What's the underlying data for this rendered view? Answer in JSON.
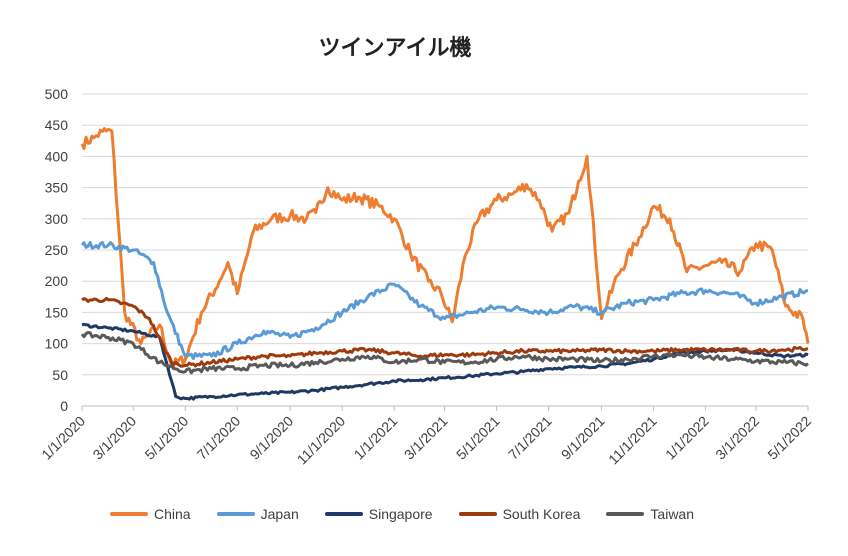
{
  "chart_data": {
    "type": "line",
    "title": "ツインアイル機",
    "xlabel": "",
    "ylabel": "",
    "ylim": [
      0,
      500
    ],
    "yticks": [
      0,
      50,
      100,
      150,
      200,
      250,
      300,
      350,
      400,
      450,
      500
    ],
    "xticks": [
      "1/1/2020",
      "3/1/2020",
      "5/1/2020",
      "7/1/2020",
      "9/1/2020",
      "11/1/2020",
      "1/1/2021",
      "3/1/2021",
      "5/1/2021",
      "7/1/2021",
      "9/1/2021",
      "11/1/2021",
      "1/1/2022",
      "3/1/2022",
      "5/1/2022"
    ],
    "grid": "horizontal",
    "legend_position": "bottom",
    "series": [
      {
        "name": "China",
        "color": "#ED7D31",
        "x": [
          "2020-01-01",
          "2020-01-15",
          "2020-01-25",
          "2020-02-05",
          "2020-02-20",
          "2020-03-10",
          "2020-04-01",
          "2020-04-15",
          "2020-05-01",
          "2020-05-20",
          "2020-06-10",
          "2020-06-20",
          "2020-07-01",
          "2020-07-20",
          "2020-08-10",
          "2020-09-01",
          "2020-09-20",
          "2020-10-01",
          "2020-10-15",
          "2020-11-01",
          "2020-11-20",
          "2020-12-15",
          "2021-01-01",
          "2021-01-20",
          "2021-02-10",
          "2021-02-25",
          "2021-03-10",
          "2021-03-25",
          "2021-04-10",
          "2021-05-01",
          "2021-05-20",
          "2021-06-05",
          "2021-06-20",
          "2021-07-05",
          "2021-07-25",
          "2021-08-05",
          "2021-08-15",
          "2021-09-01",
          "2021-09-20",
          "2021-10-15",
          "2021-11-01",
          "2021-11-20",
          "2021-12-10",
          "2022-01-01",
          "2022-01-20",
          "2022-02-10",
          "2022-03-01",
          "2022-03-20",
          "2022-04-05",
          "2022-04-25",
          "2022-05-01"
        ],
        "values": [
          420,
          430,
          440,
          440,
          150,
          100,
          130,
          65,
          75,
          150,
          200,
          230,
          180,
          280,
          300,
          305,
          300,
          310,
          350,
          330,
          335,
          320,
          300,
          245,
          200,
          180,
          135,
          240,
          300,
          330,
          340,
          355,
          330,
          280,
          310,
          360,
          400,
          140,
          210,
          270,
          320,
          300,
          215,
          225,
          230,
          215,
          260,
          250,
          160,
          140,
          100
        ]
      },
      {
        "name": "Japan",
        "color": "#5B9BD5",
        "x": [
          "2020-01-01",
          "2020-02-01",
          "2020-03-01",
          "2020-03-25",
          "2020-04-10",
          "2020-05-01",
          "2020-06-01",
          "2020-07-01",
          "2020-08-01",
          "2020-09-01",
          "2020-10-01",
          "2020-11-01",
          "2020-12-01",
          "2021-01-01",
          "2021-02-01",
          "2021-03-01",
          "2021-04-01",
          "2021-05-01",
          "2021-06-01",
          "2021-07-01",
          "2021-08-01",
          "2021-09-01",
          "2021-10-01",
          "2021-11-01",
          "2021-12-01",
          "2022-01-01",
          "2022-02-01",
          "2022-03-01",
          "2022-04-01",
          "2022-05-01"
        ],
        "values": [
          258,
          258,
          250,
          230,
          150,
          80,
          80,
          100,
          120,
          110,
          125,
          150,
          175,
          195,
          160,
          140,
          150,
          158,
          155,
          150,
          160,
          150,
          165,
          170,
          180,
          185,
          180,
          165,
          175,
          185
        ]
      },
      {
        "name": "Singapore",
        "color": "#1F3864",
        "x": [
          "2020-01-01",
          "2020-02-01",
          "2020-03-01",
          "2020-04-01",
          "2020-04-20",
          "2020-05-01",
          "2020-06-01",
          "2020-07-01",
          "2020-08-01",
          "2020-09-01",
          "2020-10-01",
          "2020-11-01",
          "2020-12-01",
          "2021-01-01",
          "2021-02-01",
          "2021-03-01",
          "2021-04-01",
          "2021-05-01",
          "2021-06-01",
          "2021-07-01",
          "2021-08-01",
          "2021-09-01",
          "2021-10-01",
          "2021-11-01",
          "2021-12-01",
          "2022-01-01",
          "2022-02-01",
          "2022-03-01",
          "2022-04-01",
          "2022-05-01"
        ],
        "values": [
          130,
          125,
          120,
          110,
          15,
          12,
          15,
          18,
          20,
          22,
          25,
          30,
          35,
          40,
          42,
          45,
          48,
          52,
          55,
          60,
          62,
          64,
          68,
          75,
          85,
          88,
          90,
          85,
          80,
          82
        ]
      },
      {
        "name": "South Korea",
        "color": "#9E3B0E",
        "x": [
          "2020-01-01",
          "2020-02-01",
          "2020-03-01",
          "2020-03-20",
          "2020-04-15",
          "2020-05-01",
          "2020-06-01",
          "2020-07-01",
          "2020-08-01",
          "2020-09-01",
          "2020-10-01",
          "2020-11-01",
          "2020-12-01",
          "2021-01-01",
          "2021-02-01",
          "2021-03-01",
          "2021-04-01",
          "2021-05-01",
          "2021-06-01",
          "2021-07-01",
          "2021-08-01",
          "2021-09-01",
          "2021-10-01",
          "2021-11-01",
          "2021-12-01",
          "2022-01-01",
          "2022-02-01",
          "2022-03-01",
          "2022-04-01",
          "2022-05-01"
        ],
        "values": [
          170,
          170,
          160,
          140,
          70,
          65,
          70,
          75,
          80,
          80,
          85,
          88,
          90,
          85,
          80,
          82,
          82,
          85,
          88,
          88,
          88,
          90,
          88,
          88,
          90,
          90,
          90,
          88,
          90,
          92
        ]
      },
      {
        "name": "Taiwan",
        "color": "#595959",
        "x": [
          "2020-01-01",
          "2020-02-01",
          "2020-03-01",
          "2020-04-01",
          "2020-05-01",
          "2020-06-01",
          "2020-07-01",
          "2020-08-01",
          "2020-09-01",
          "2020-10-01",
          "2020-11-01",
          "2020-12-01",
          "2021-01-01",
          "2021-02-01",
          "2021-03-01",
          "2021-04-01",
          "2021-05-01",
          "2021-06-01",
          "2021-07-01",
          "2021-08-01",
          "2021-09-01",
          "2021-10-01",
          "2021-11-01",
          "2021-12-01",
          "2022-01-01",
          "2022-02-01",
          "2022-03-01",
          "2022-04-01",
          "2022-05-01"
        ],
        "values": [
          115,
          110,
          100,
          70,
          55,
          60,
          60,
          65,
          65,
          70,
          75,
          80,
          70,
          75,
          70,
          70,
          75,
          80,
          75,
          75,
          72,
          75,
          80,
          82,
          78,
          75,
          72,
          70,
          68
        ]
      }
    ]
  }
}
